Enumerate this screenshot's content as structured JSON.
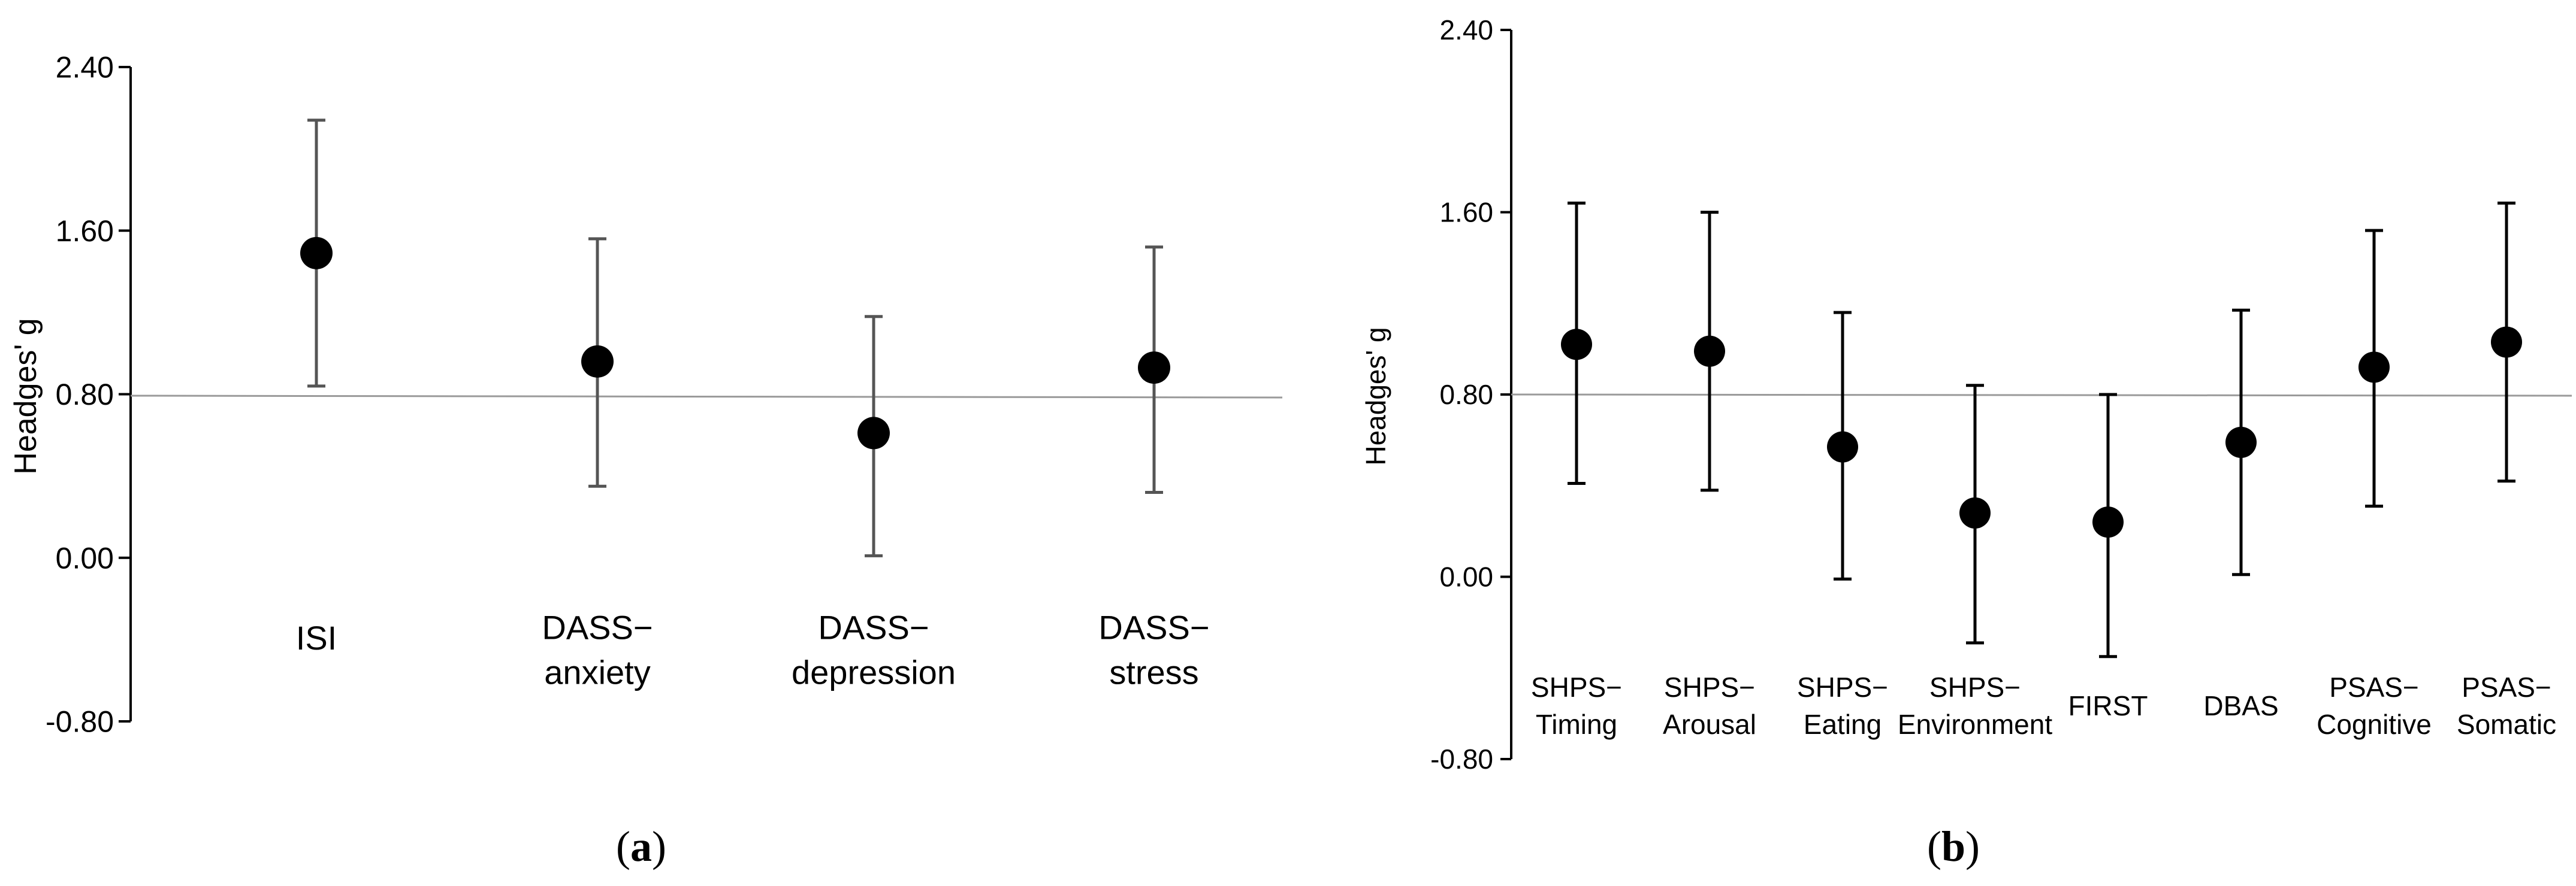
{
  "chart_data": [
    {
      "type": "scatter",
      "panel_label": "a",
      "ylabel": "Headges' g",
      "ylim": [
        -0.8,
        2.4
      ],
      "yticks": [
        "2.40",
        "1.60",
        "0.80",
        "0.00",
        "-0.80"
      ],
      "reference_line": 0.78,
      "categories": [
        [
          "ISI"
        ],
        [
          "DASS−",
          "anxiety"
        ],
        [
          "DASS−",
          "depression"
        ],
        [
          "DASS−",
          "stress"
        ]
      ],
      "points": [
        {
          "mean": 1.49,
          "lower": 0.84,
          "upper": 2.14
        },
        {
          "mean": 0.96,
          "lower": 0.35,
          "upper": 1.56
        },
        {
          "mean": 0.61,
          "lower": 0.01,
          "upper": 1.18
        },
        {
          "mean": 0.93,
          "lower": 0.32,
          "upper": 1.52
        }
      ]
    },
    {
      "type": "scatter",
      "panel_label": "b",
      "ylabel": "Headges' g",
      "ylim": [
        -0.8,
        2.4
      ],
      "yticks": [
        "2.40",
        "1.60",
        "0.80",
        "0.00",
        "-0.80"
      ],
      "reference_line": 0.79,
      "categories": [
        [
          "SHPS−",
          "Timing"
        ],
        [
          "SHPS−",
          "Arousal"
        ],
        [
          "SHPS−",
          "Eating"
        ],
        [
          "SHPS−",
          "Environment"
        ],
        [
          "FIRST"
        ],
        [
          "DBAS"
        ],
        [
          "PSAS−",
          "Cognitive"
        ],
        [
          "PSAS−",
          "Somatic"
        ]
      ],
      "points": [
        {
          "mean": 1.02,
          "lower": 0.41,
          "upper": 1.64
        },
        {
          "mean": 0.99,
          "lower": 0.38,
          "upper": 1.6
        },
        {
          "mean": 0.57,
          "lower": -0.01,
          "upper": 1.16
        },
        {
          "mean": 0.28,
          "lower": -0.29,
          "upper": 0.84
        },
        {
          "mean": 0.24,
          "lower": -0.35,
          "upper": 0.8
        },
        {
          "mean": 0.59,
          "lower": 0.01,
          "upper": 1.17
        },
        {
          "mean": 0.92,
          "lower": 0.31,
          "upper": 1.52
        },
        {
          "mean": 1.03,
          "lower": 0.42,
          "upper": 1.64
        }
      ]
    }
  ]
}
